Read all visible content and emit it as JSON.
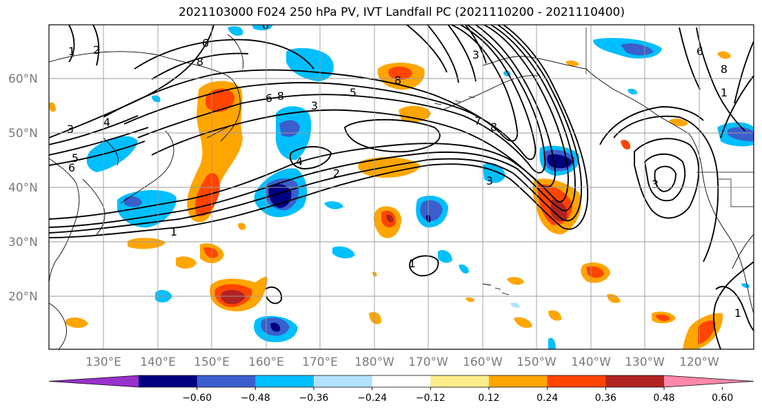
{
  "title": "2021103000 F024 250 hPa PV, IVT Landfall PC (2021110200 - 2021110400)",
  "lat_labels": [
    "60°N",
    "50°N",
    "40°N",
    "30°N",
    "20°N"
  ],
  "lon_labels": [
    "130°E",
    "140°E",
    "150°E",
    "160°E",
    "170°E",
    "180°W",
    "170°W",
    "160°W",
    "150°W",
    "140°W",
    "130°W",
    "120°W"
  ],
  "contour_labels": [
    "1",
    "2",
    "3",
    "4",
    "5",
    "6",
    "7",
    "8"
  ],
  "colorbar": {
    "colors": [
      "#9932cc",
      "#000080",
      "#3a5fcd",
      "#00bfff",
      "#b0e2ff",
      "#ffffff",
      "#ffec8b",
      "#ffa500",
      "#ff4500",
      "#b22222",
      "#ff88aa"
    ],
    "tick_labels": [
      "−0.60",
      "−0.48",
      "−0.36",
      "−0.24",
      "−0.12",
      "0.12",
      "0.24",
      "0.36",
      "0.48",
      "0.60"
    ]
  }
}
